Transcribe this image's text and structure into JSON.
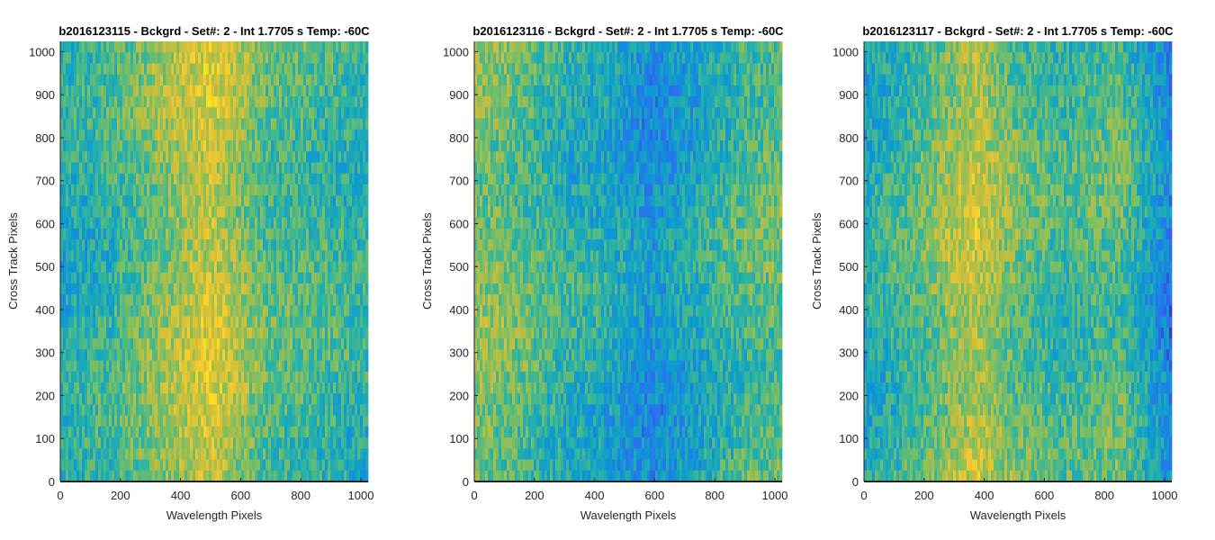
{
  "chart_data": [
    {
      "type": "heatmap",
      "title": "b2016123115 - Bckgrd - Set#: 2 - Int 1.7705 s Temp: -60C",
      "xlabel": "Wavelength Pixels",
      "ylabel": "Cross Track Pixels",
      "xlim": [
        0,
        1024
      ],
      "ylim": [
        0,
        1024
      ],
      "xticks": [
        "0",
        "200",
        "400",
        "600",
        "800",
        "1000"
      ],
      "yticks": [
        "0",
        "100",
        "200",
        "300",
        "400",
        "500",
        "600",
        "700",
        "800",
        "900",
        "1000"
      ],
      "colormap": "parula",
      "grid": false,
      "column_intensity_profile": [
        {
          "x": 0,
          "level": 0.4
        },
        {
          "x": 150,
          "level": 0.46
        },
        {
          "x": 330,
          "level": 0.62
        },
        {
          "x": 500,
          "level": 0.78
        },
        {
          "x": 560,
          "level": 0.7
        },
        {
          "x": 700,
          "level": 0.52
        },
        {
          "x": 850,
          "level": 0.5
        },
        {
          "x": 1024,
          "level": 0.44
        }
      ]
    },
    {
      "type": "heatmap",
      "title": "b2016123116 - Bckgrd - Set#: 2 - Int 1.7705 s Temp: -60C",
      "xlabel": "Wavelength Pixels",
      "ylabel": "Cross Track Pixels",
      "xlim": [
        0,
        1024
      ],
      "ylim": [
        0,
        1024
      ],
      "xticks": [
        "0",
        "200",
        "400",
        "600",
        "800",
        "1000"
      ],
      "yticks": [
        "0",
        "100",
        "200",
        "300",
        "400",
        "500",
        "600",
        "700",
        "800",
        "900",
        "1000"
      ],
      "colormap": "parula",
      "grid": false,
      "column_intensity_profile": [
        {
          "x": 0,
          "level": 0.62
        },
        {
          "x": 120,
          "level": 0.58
        },
        {
          "x": 300,
          "level": 0.44
        },
        {
          "x": 450,
          "level": 0.4
        },
        {
          "x": 590,
          "level": 0.28
        },
        {
          "x": 750,
          "level": 0.4
        },
        {
          "x": 900,
          "level": 0.52
        },
        {
          "x": 1024,
          "level": 0.56
        }
      ]
    },
    {
      "type": "heatmap",
      "title": "b2016123117 - Bckgrd - Set#: 2 - Int 1.7705 s Temp: -60C",
      "xlabel": "Wavelength Pixels",
      "ylabel": "Cross Track Pixels",
      "xlim": [
        0,
        1024
      ],
      "ylim": [
        0,
        1024
      ],
      "xticks": [
        "0",
        "200",
        "400",
        "600",
        "800",
        "1000"
      ],
      "yticks": [
        "0",
        "100",
        "200",
        "300",
        "400",
        "500",
        "600",
        "700",
        "800",
        "900",
        "1000"
      ],
      "colormap": "parula",
      "grid": false,
      "column_intensity_profile": [
        {
          "x": 0,
          "level": 0.4
        },
        {
          "x": 150,
          "level": 0.5
        },
        {
          "x": 370,
          "level": 0.74
        },
        {
          "x": 500,
          "level": 0.58
        },
        {
          "x": 650,
          "level": 0.48
        },
        {
          "x": 850,
          "level": 0.55
        },
        {
          "x": 950,
          "level": 0.36
        },
        {
          "x": 1024,
          "level": 0.22
        }
      ]
    }
  ]
}
